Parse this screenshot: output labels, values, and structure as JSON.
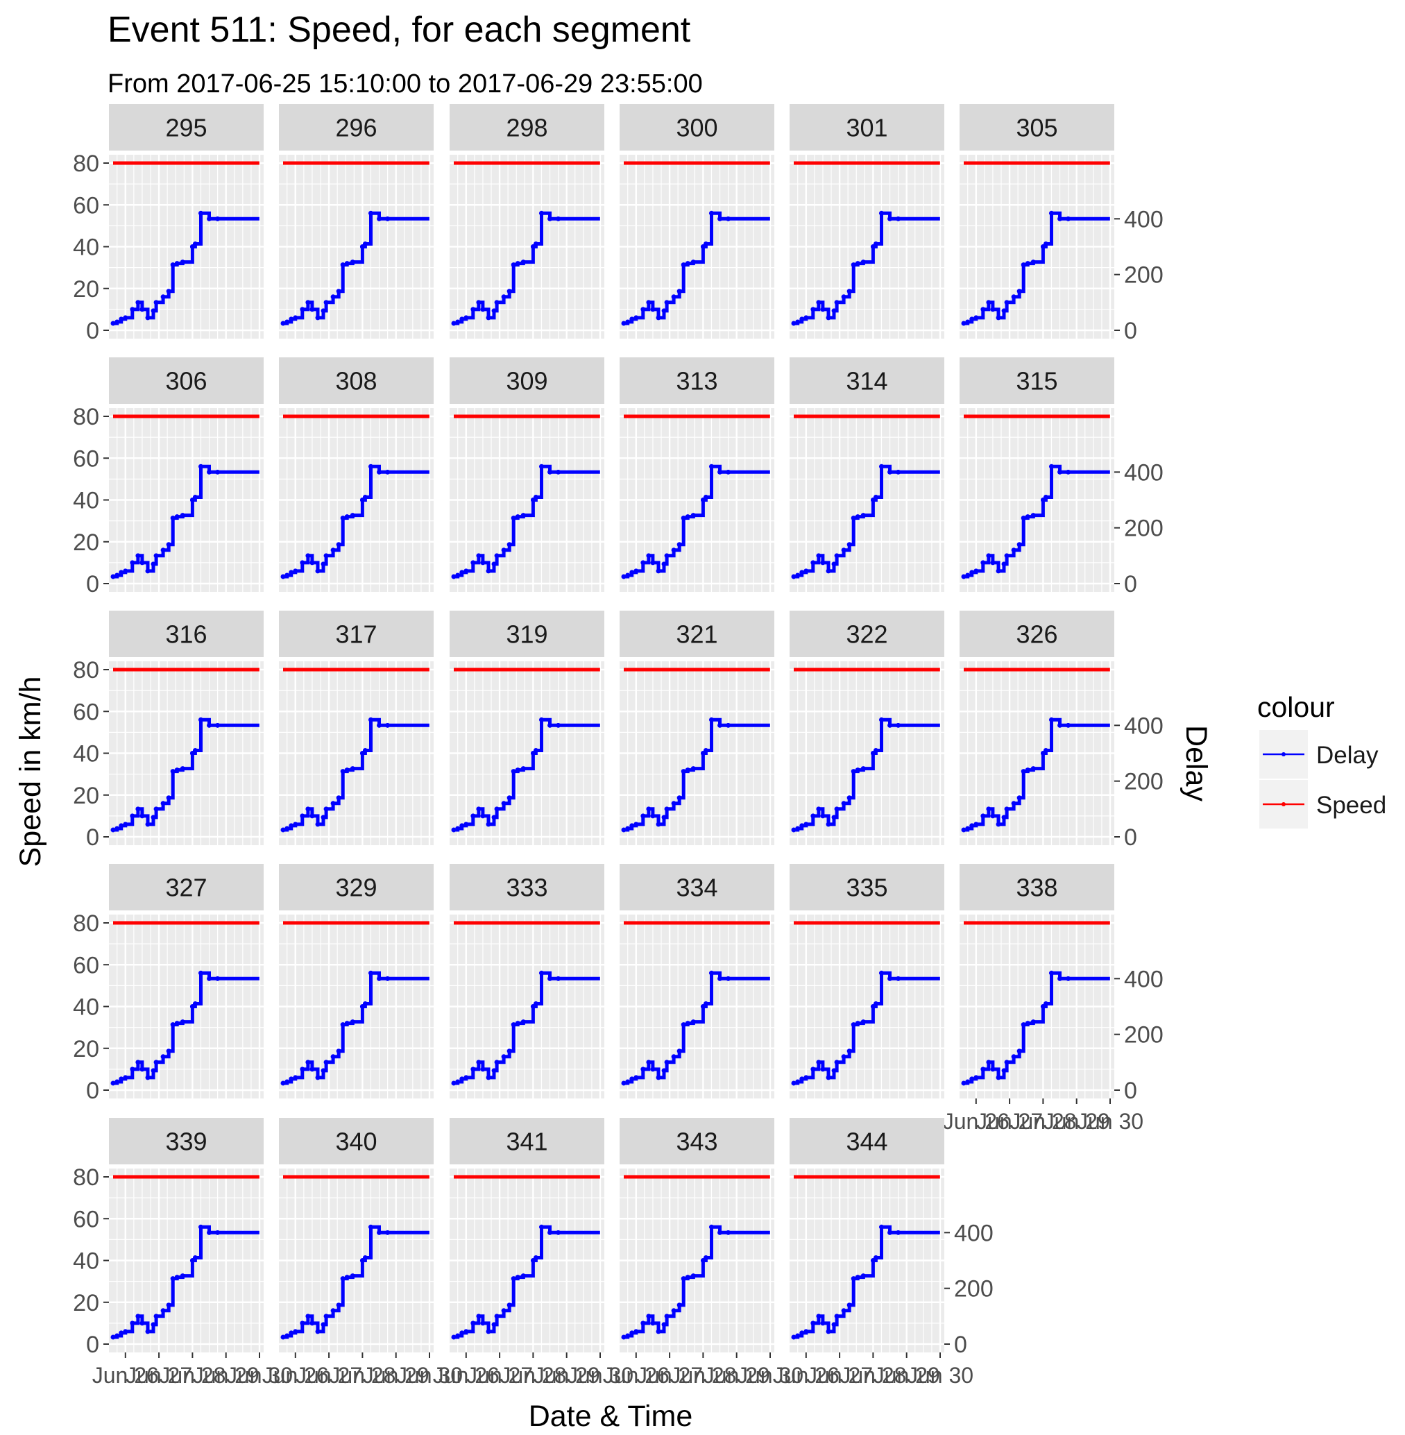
{
  "chart_data": {
    "type": "line",
    "title": "Event 511: Speed, for each segment",
    "subtitle": "From 2017-06-25 15:10:00 to 2017-06-29 23:55:00",
    "xlabel": "Date & Time",
    "ylabel": "Speed in km/h",
    "ylabel_right": "Delay",
    "xlim": [
      "2017-06-25 15:10",
      "2017-06-30 00:00"
    ],
    "ylim": [
      0,
      80
    ],
    "ylim_right": [
      0,
      600
    ],
    "x_ticks": [
      "Jun 26",
      "Jun 27",
      "Jun 28",
      "Jun 29",
      "Jun 30"
    ],
    "x_tick_labels": [
      "Jun 26",
      "Jun 27",
      "Jun 28",
      "Jun 29",
      "Jun 30"
    ],
    "y_ticks": [
      0,
      20,
      40,
      60,
      80
    ],
    "y_ticks_right": [
      0,
      200,
      400
    ],
    "grid": true,
    "legend": {
      "title": "colour",
      "position": "right",
      "items": [
        {
          "label": "Delay",
          "color": "#0000ff"
        },
        {
          "label": "Speed",
          "color": "#ff0000"
        }
      ]
    },
    "facets": [
      "295",
      "296",
      "298",
      "300",
      "301",
      "305",
      "306",
      "308",
      "309",
      "313",
      "314",
      "315",
      "316",
      "317",
      "319",
      "321",
      "322",
      "326",
      "327",
      "329",
      "333",
      "334",
      "335",
      "338",
      "339",
      "340",
      "341",
      "343",
      "344"
    ],
    "series": [
      {
        "name": "Speed",
        "axis": "left",
        "color": "#ff0000",
        "x": [
          "2017-06-25 15:10",
          "2017-06-29 23:55"
        ],
        "y": [
          80,
          80
        ]
      },
      {
        "name": "Delay",
        "axis": "right",
        "color": "#0000ff",
        "x": [
          "2017-06-25 15:10",
          "2017-06-25 18:00",
          "2017-06-25 18:00",
          "2017-06-25 21:00",
          "2017-06-25 21:00",
          "2017-06-26 00:00",
          "2017-06-26 00:00",
          "2017-06-26 05:00",
          "2017-06-26 05:00",
          "2017-06-26 09:00",
          "2017-06-26 09:00",
          "2017-06-26 12:00",
          "2017-06-26 12:00",
          "2017-06-26 16:00",
          "2017-06-26 16:00",
          "2017-06-26 20:00",
          "2017-06-26 20:00",
          "2017-06-26 22:00",
          "2017-06-26 22:00",
          "2017-06-27 03:00",
          "2017-06-27 03:00",
          "2017-06-27 07:00",
          "2017-06-27 07:00",
          "2017-06-27 10:00",
          "2017-06-27 10:00",
          "2017-06-27 13:00",
          "2017-06-27 13:00",
          "2017-06-27 17:00",
          "2017-06-27 17:00",
          "2017-06-28 00:00",
          "2017-06-28 00:00",
          "2017-06-28 02:00",
          "2017-06-28 02:00",
          "2017-06-28 06:00",
          "2017-06-28 06:00",
          "2017-06-28 12:00",
          "2017-06-28 12:00",
          "2017-06-28 18:00",
          "2017-06-28 18:00",
          "2017-06-29 23:55"
        ],
        "y": [
          25,
          25,
          30,
          30,
          40,
          40,
          45,
          45,
          75,
          75,
          100,
          100,
          75,
          75,
          45,
          45,
          70,
          70,
          100,
          100,
          120,
          120,
          140,
          140,
          235,
          235,
          240,
          240,
          245,
          245,
          300,
          300,
          310,
          310,
          420,
          420,
          400,
          400,
          400,
          400
        ]
      }
    ]
  }
}
